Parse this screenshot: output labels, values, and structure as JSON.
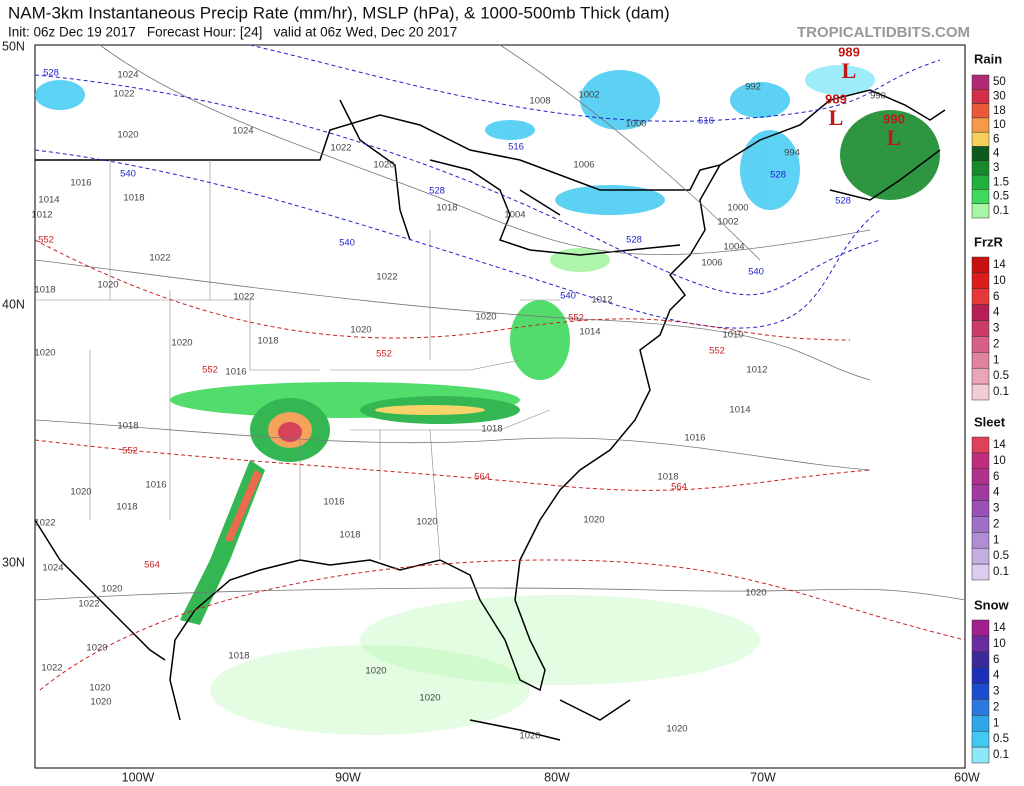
{
  "header": {
    "title": "NAM-3km Instantaneous Precip Rate (mm/hr), MSLP (hPa), & 1000-500mb Thick (dam)",
    "subtitle": "Init: 06z Dec 19 2017   Forecast Hour: [24]   valid at 06z Wed, Dec 20 2017",
    "credit": "TROPICALTIDBITS.COM"
  },
  "axes": {
    "lat_labels": [
      "50N",
      "40N",
      "30N"
    ],
    "lon_labels": [
      "100W",
      "90W",
      "80W",
      "70W",
      "60W"
    ]
  },
  "legends": [
    {
      "title": "Rain",
      "labels": [
        "50",
        "30",
        "18",
        "10",
        "6",
        "4",
        "3",
        "1.5",
        "0.5",
        "0.1"
      ],
      "colors": [
        "#b02a78",
        "#d23048",
        "#ea5a3a",
        "#f59a4a",
        "#f7cf5a",
        "#0e5a1e",
        "#178a2c",
        "#1fb040",
        "#3fd95c",
        "#a8f5a4"
      ]
    },
    {
      "title": "FrzR",
      "labels": [
        "14",
        "10",
        "6",
        "4",
        "3",
        "2",
        "1",
        "0.5",
        "0.1"
      ],
      "colors": [
        "#c81010",
        "#dc1c1c",
        "#e63838",
        "#b81e56",
        "#cc3a68",
        "#d6608a",
        "#e0849c",
        "#eaa6b4",
        "#f4cdd4"
      ]
    },
    {
      "title": "Sleet",
      "labels": [
        "14",
        "10",
        "6",
        "4",
        "3",
        "2",
        "1",
        "0.5",
        "0.1"
      ],
      "colors": [
        "#e0405a",
        "#c02c7c",
        "#b0308e",
        "#a03a9e",
        "#9a50b4",
        "#a070c8",
        "#b08ed6",
        "#c4aee2",
        "#dccdef"
      ]
    },
    {
      "title": "Snow",
      "labels": [
        "14",
        "10",
        "6",
        "4",
        "3",
        "2",
        "1",
        "0.5",
        "0.1"
      ],
      "colors": [
        "#a0208c",
        "#6a2aa0",
        "#3a2a9c",
        "#1a30b8",
        "#1a4ed0",
        "#2a78e0",
        "#30a6ea",
        "#40caf2",
        "#8ee8f8"
      ]
    }
  ],
  "lows": [
    {
      "pressure": "989",
      "symbol": "L"
    },
    {
      "pressure": "989",
      "symbol": "L"
    },
    {
      "pressure": "990",
      "symbol": "L"
    }
  ],
  "isobar_labels": [
    "1024",
    "1022",
    "1020",
    "1024",
    "1022",
    "1020",
    "1018",
    "1016",
    "1018",
    "1014",
    "1012",
    "1022",
    "1020",
    "1018",
    "1022",
    "1022",
    "1020",
    "1020",
    "1018",
    "1016",
    "1020",
    "1020",
    "1018",
    "1016",
    "1020",
    "1018",
    "1022",
    "1016",
    "1018",
    "1020",
    "1018",
    "1016",
    "1014",
    "1012",
    "1010",
    "1018",
    "1020",
    "1020",
    "1024",
    "1022",
    "1020",
    "1020",
    "1018",
    "1020",
    "1020",
    "1022",
    "1020",
    "1020",
    "1020",
    "1020",
    "1008",
    "1006",
    "1004",
    "1002",
    "1000",
    "992",
    "990",
    "994",
    "1000",
    "1002",
    "1004",
    "1006",
    "1012",
    "1014"
  ],
  "thickness_blue": [
    "528",
    "516",
    "516",
    "540",
    "528",
    "540",
    "528",
    "540",
    "540",
    "528",
    "528"
  ],
  "thickness_red": [
    "552",
    "552",
    "552",
    "552",
    "552",
    "552",
    "564",
    "564",
    "564"
  ]
}
